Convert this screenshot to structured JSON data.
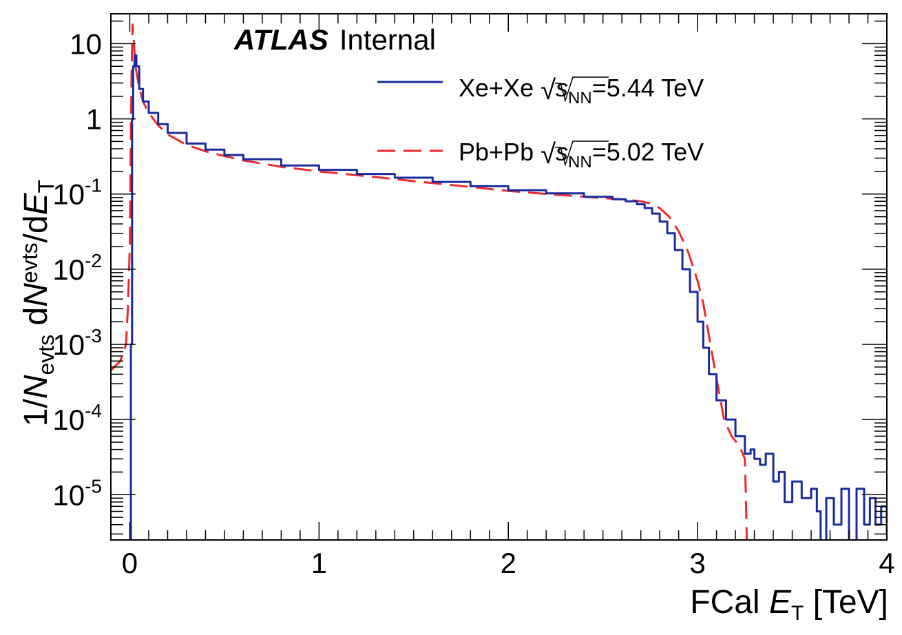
{
  "chart_data": {
    "type": "line",
    "title": "",
    "label": {
      "experiment": "ATLAS",
      "status": "Internal"
    },
    "xlabel": {
      "main": "FCal ",
      "var": "E",
      "sub": "T",
      "unit": " [TeV]"
    },
    "ylabel": {
      "p1": "1/",
      "n1": "N",
      "s1": "evts",
      "p2": " d",
      "n2": "N",
      "s2": "evts",
      "p3": "/d",
      "n3": "E",
      "s3": "T"
    },
    "xlim": [
      -0.1,
      4.0
    ],
    "ylim": [
      2.5e-06,
      25
    ],
    "yscale": "log",
    "x_ticks": [
      {
        "value": 0,
        "label": "0"
      },
      {
        "value": 1,
        "label": "1"
      },
      {
        "value": 2,
        "label": "2"
      },
      {
        "value": 3,
        "label": "3"
      },
      {
        "value": 4,
        "label": "4"
      }
    ],
    "y_ticks": [
      {
        "value": 10,
        "base": "10",
        "exp": ""
      },
      {
        "value": 1,
        "base": "1",
        "exp": ""
      },
      {
        "value": 0.1,
        "base": "10",
        "exp": "-1"
      },
      {
        "value": 0.01,
        "base": "10",
        "exp": "-2"
      },
      {
        "value": 0.001,
        "base": "10",
        "exp": "-3"
      },
      {
        "value": 0.0001,
        "base": "10",
        "exp": "-4"
      },
      {
        "value": 1e-05,
        "base": "10",
        "exp": "-5"
      }
    ],
    "legend_position": "top-right",
    "series": [
      {
        "name": "Xe+Xe",
        "legend_label": {
          "system": "Xe+Xe ",
          "s": "s",
          "sub": "NN",
          "energy": "=5.44 TeV"
        },
        "color": "#1a2a9c",
        "style": "solid-histogram",
        "points": [
          [
            -0.1,
            2e-06
          ],
          [
            0.005,
            2e-06
          ],
          [
            0.006,
            0.001
          ],
          [
            0.012,
            1.0
          ],
          [
            0.018,
            5.0
          ],
          [
            0.025,
            7.0
          ],
          [
            0.035,
            5.0
          ],
          [
            0.05,
            2.5
          ],
          [
            0.07,
            1.7
          ],
          [
            0.1,
            1.2
          ],
          [
            0.15,
            0.85
          ],
          [
            0.2,
            0.65
          ],
          [
            0.3,
            0.47
          ],
          [
            0.4,
            0.39
          ],
          [
            0.5,
            0.33
          ],
          [
            0.6,
            0.29
          ],
          [
            0.8,
            0.24
          ],
          [
            1.0,
            0.21
          ],
          [
            1.2,
            0.185
          ],
          [
            1.4,
            0.165
          ],
          [
            1.6,
            0.145
          ],
          [
            1.8,
            0.127
          ],
          [
            2.0,
            0.112
          ],
          [
            2.2,
            0.102
          ],
          [
            2.4,
            0.092
          ],
          [
            2.55,
            0.085
          ],
          [
            2.62,
            0.08
          ],
          [
            2.68,
            0.073
          ],
          [
            2.72,
            0.065
          ],
          [
            2.76,
            0.055
          ],
          [
            2.8,
            0.043
          ],
          [
            2.84,
            0.03
          ],
          [
            2.88,
            0.018
          ],
          [
            2.92,
            0.01
          ],
          [
            2.96,
            0.005
          ],
          [
            3.0,
            0.002
          ],
          [
            3.03,
            0.0009
          ],
          [
            3.06,
            0.0004
          ],
          [
            3.1,
            0.00018
          ],
          [
            3.15,
            0.0001
          ],
          [
            3.2,
            6e-05
          ],
          [
            3.25,
            3.5e-05
          ],
          [
            3.28,
            4e-05
          ],
          [
            3.3,
            3e-05
          ],
          [
            3.33,
            2.5e-05
          ],
          [
            3.36,
            3.5e-05
          ],
          [
            3.4,
            1.5e-05
          ],
          [
            3.43,
            2e-05
          ],
          [
            3.46,
            8e-06
          ],
          [
            3.5,
            1.5e-05
          ],
          [
            3.55,
            9e-06
          ],
          [
            3.6,
            1.2e-05
          ],
          [
            3.63,
            6e-06
          ],
          [
            3.65,
            2e-06
          ],
          [
            3.68,
            9e-06
          ],
          [
            3.72,
            4e-06
          ],
          [
            3.76,
            1.2e-05
          ],
          [
            3.8,
            2e-06
          ],
          [
            3.84,
            1.2e-05
          ],
          [
            3.88,
            4e-06
          ],
          [
            3.91,
            9e-06
          ],
          [
            3.94,
            4e-06
          ],
          [
            3.97,
            7e-06
          ],
          [
            4.0,
            3e-06
          ]
        ]
      },
      {
        "name": "Pb+Pb",
        "legend_label": {
          "system": "Pb+Pb ",
          "s": "s",
          "sub": "NN",
          "energy": "=5.02 TeV"
        },
        "color": "#ee2a2e",
        "style": "dashed",
        "points": [
          [
            -0.1,
            0.00045
          ],
          [
            -0.05,
            0.0006
          ],
          [
            -0.02,
            0.001
          ],
          [
            -0.01,
            0.003
          ],
          [
            0.0,
            0.02
          ],
          [
            0.005,
            0.5
          ],
          [
            0.01,
            5.0
          ],
          [
            0.015,
            18.0
          ],
          [
            0.02,
            12.0
          ],
          [
            0.03,
            5.0
          ],
          [
            0.05,
            2.6
          ],
          [
            0.07,
            1.7
          ],
          [
            0.1,
            1.2
          ],
          [
            0.15,
            0.82
          ],
          [
            0.2,
            0.62
          ],
          [
            0.3,
            0.45
          ],
          [
            0.4,
            0.37
          ],
          [
            0.5,
            0.32
          ],
          [
            0.6,
            0.28
          ],
          [
            0.8,
            0.23
          ],
          [
            1.0,
            0.2
          ],
          [
            1.2,
            0.178
          ],
          [
            1.4,
            0.158
          ],
          [
            1.6,
            0.14
          ],
          [
            1.8,
            0.124
          ],
          [
            2.0,
            0.11
          ],
          [
            2.2,
            0.1
          ],
          [
            2.4,
            0.092
          ],
          [
            2.6,
            0.085
          ],
          [
            2.7,
            0.08
          ],
          [
            2.75,
            0.075
          ],
          [
            2.8,
            0.065
          ],
          [
            2.85,
            0.05
          ],
          [
            2.9,
            0.032
          ],
          [
            2.95,
            0.017
          ],
          [
            3.0,
            0.007
          ],
          [
            3.03,
            0.0035
          ],
          [
            3.06,
            0.0013
          ],
          [
            3.1,
            0.00035
          ],
          [
            3.14,
            0.0001
          ],
          [
            3.18,
            6e-05
          ],
          [
            3.22,
            4.5e-05
          ],
          [
            3.25,
            3e-05
          ],
          [
            3.255,
            1e-05
          ],
          [
            3.26,
            2.5e-06
          ]
        ]
      }
    ]
  }
}
